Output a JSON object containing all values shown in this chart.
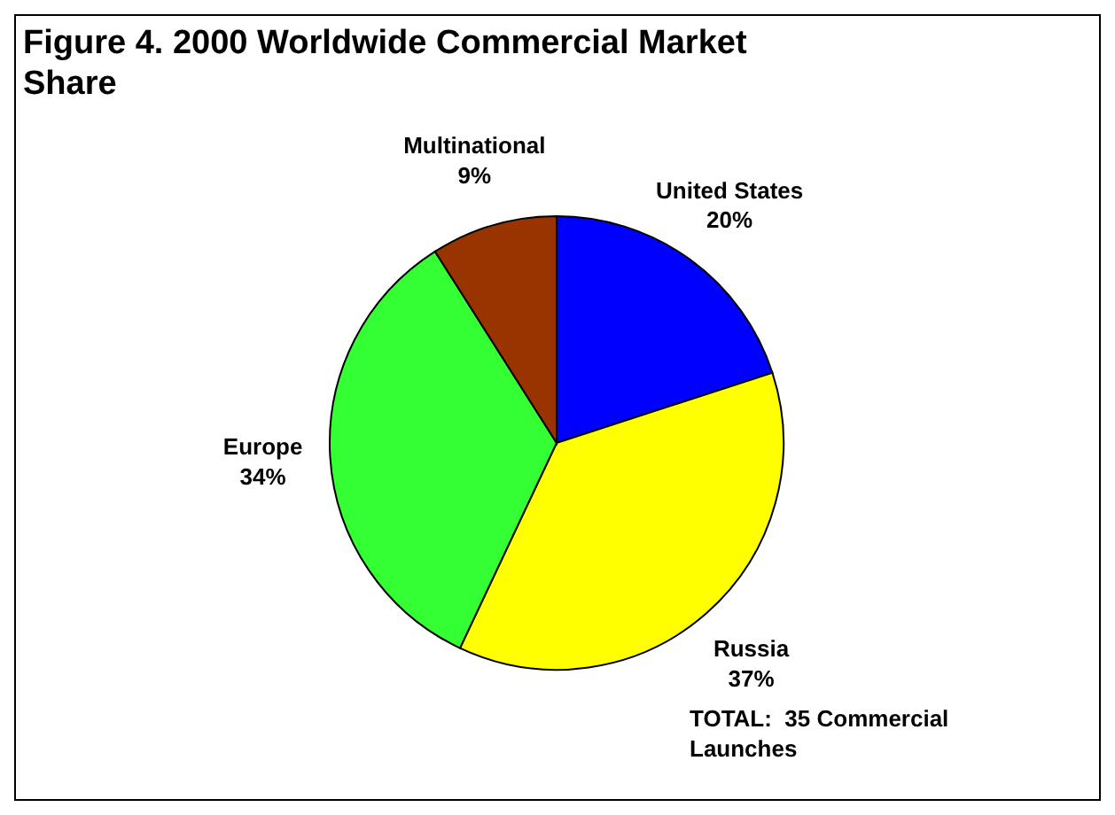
{
  "chart_data": {
    "type": "pie",
    "title": "Figure 4. 2000 Worldwide Commercial Market Share",
    "categories": [
      "United States",
      "Russia",
      "Europe",
      "Multinational"
    ],
    "values": [
      20,
      37,
      34,
      9
    ],
    "value_labels": [
      "20%",
      "37%",
      "34%",
      "9%"
    ],
    "colors": [
      "#0000ff",
      "#ffff00",
      "#33ff33",
      "#993300"
    ],
    "annotations": [
      "TOTAL:  35 Commercial Launches"
    ],
    "legend": false
  }
}
